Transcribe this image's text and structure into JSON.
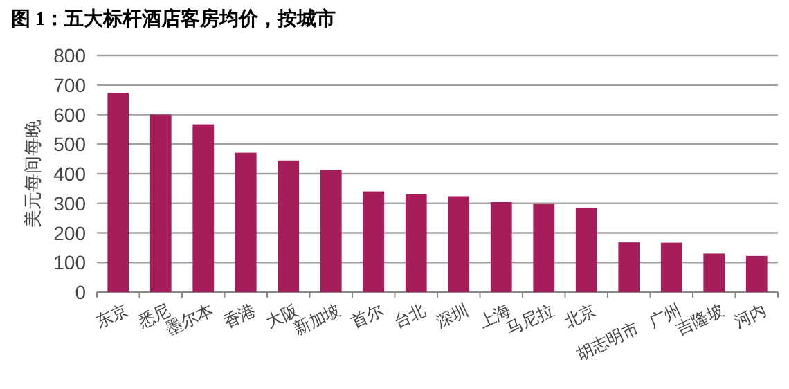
{
  "chart_data": {
    "type": "bar",
    "title": "图 1：五大标杆酒店客房均价，按城市",
    "ylabel": "美元每间每晚",
    "categories": [
      "东京",
      "悉尼",
      "墨尔本",
      "香港",
      "大阪",
      "新加坡",
      "首尔",
      "台北",
      "深圳",
      "上海",
      "马尼拉",
      "北京",
      "胡志明市",
      "广州",
      "吉隆坡",
      "河内"
    ],
    "values": [
      673,
      600,
      567,
      471,
      445,
      413,
      340,
      330,
      324,
      304,
      297,
      285,
      168,
      167,
      130,
      122
    ],
    "color": "#a51d5a",
    "ylim": [
      0,
      800
    ],
    "yticks": [
      0,
      100,
      200,
      300,
      400,
      500,
      600,
      700,
      800
    ],
    "grid": "y"
  }
}
